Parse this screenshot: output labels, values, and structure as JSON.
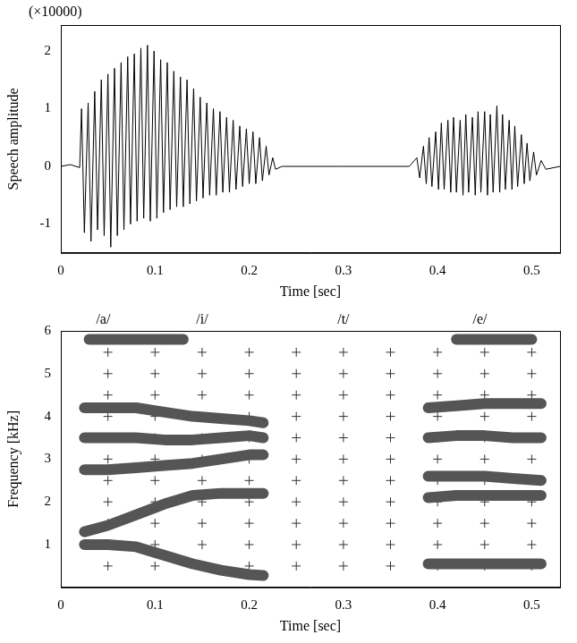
{
  "chart_data": [
    {
      "type": "line",
      "annotations": [
        {
          "text": "(×10000)"
        }
      ],
      "xlabel": "Time [sec]",
      "ylabel": "Speech amplitude",
      "xlim": [
        0,
        0.53
      ],
      "xticks": [
        0,
        0.1,
        0.2,
        0.3,
        0.4,
        0.5
      ],
      "ylim": [
        -1.5,
        2.45
      ],
      "yticks": [
        -1,
        0,
        1,
        2
      ],
      "grid": false,
      "series": [
        {
          "color": "#000000",
          "line_style": "solid",
          "x": [
            0,
            0.01,
            0.02,
            0.022,
            0.025,
            0.029,
            0.032,
            0.036,
            0.039,
            0.043,
            0.046,
            0.05,
            0.053,
            0.057,
            0.06,
            0.064,
            0.067,
            0.071,
            0.074,
            0.078,
            0.081,
            0.085,
            0.088,
            0.092,
            0.095,
            0.099,
            0.102,
            0.106,
            0.109,
            0.113,
            0.116,
            0.12,
            0.123,
            0.127,
            0.13,
            0.134,
            0.137,
            0.141,
            0.144,
            0.148,
            0.151,
            0.155,
            0.158,
            0.162,
            0.165,
            0.169,
            0.172,
            0.176,
            0.179,
            0.183,
            0.186,
            0.19,
            0.193,
            0.197,
            0.2,
            0.204,
            0.207,
            0.211,
            0.214,
            0.218,
            0.221,
            0.225,
            0.228,
            0.235,
            0.3,
            0.37,
            0.378,
            0.381,
            0.385,
            0.388,
            0.391,
            0.394,
            0.398,
            0.401,
            0.404,
            0.407,
            0.411,
            0.414,
            0.417,
            0.42,
            0.424,
            0.427,
            0.43,
            0.433,
            0.437,
            0.44,
            0.443,
            0.446,
            0.45,
            0.453,
            0.456,
            0.459,
            0.463,
            0.466,
            0.469,
            0.472,
            0.476,
            0.479,
            0.482,
            0.485,
            0.489,
            0.492,
            0.495,
            0.498,
            0.502,
            0.505,
            0.51,
            0.515,
            0.53
          ],
          "values": [
            0,
            0.03,
            -0.02,
            1.0,
            -1.15,
            1.1,
            -1.3,
            1.3,
            -1.1,
            1.5,
            -1.2,
            1.6,
            -1.4,
            1.7,
            -1.2,
            1.8,
            -1.1,
            1.9,
            -1.0,
            1.95,
            -0.95,
            2.05,
            -0.9,
            2.1,
            -0.95,
            2.0,
            -0.9,
            1.85,
            -0.8,
            1.8,
            -0.75,
            1.65,
            -0.7,
            1.55,
            -0.7,
            1.5,
            -0.65,
            1.35,
            -0.6,
            1.2,
            -0.55,
            1.1,
            -0.5,
            1.0,
            -0.5,
            0.95,
            -0.45,
            0.85,
            -0.45,
            0.8,
            -0.4,
            0.7,
            -0.35,
            0.65,
            -0.3,
            0.6,
            -0.3,
            0.5,
            -0.25,
            0.35,
            -0.15,
            0.15,
            -0.05,
            0,
            0,
            0,
            0.15,
            -0.2,
            0.35,
            -0.3,
            0.5,
            -0.35,
            0.6,
            -0.4,
            0.75,
            -0.4,
            0.8,
            -0.45,
            0.85,
            -0.45,
            0.8,
            -0.5,
            0.9,
            -0.45,
            0.85,
            -0.5,
            0.95,
            -0.45,
            0.95,
            -0.5,
            0.9,
            -0.45,
            1.05,
            -0.45,
            0.9,
            -0.4,
            0.8,
            -0.4,
            0.7,
            -0.35,
            0.55,
            -0.3,
            0.4,
            -0.25,
            0.25,
            -0.15,
            0.1,
            -0.05,
            0
          ]
        }
      ]
    },
    {
      "type": "scatter",
      "annotations": [
        {
          "text": "/a/",
          "x": 0.045
        },
        {
          "text": "/i/",
          "x": 0.15
        },
        {
          "text": "/t/",
          "x": 0.3
        },
        {
          "text": "/e/",
          "x": 0.445
        }
      ],
      "xlabel": "Time [sec]",
      "ylabel": "Frequency [kHz]",
      "xlim": [
        0,
        0.53
      ],
      "xticks": [
        0,
        0.1,
        0.2,
        0.3,
        0.4,
        0.5
      ],
      "ylim": [
        0,
        6
      ],
      "yticks": [
        1,
        2,
        3,
        4,
        5,
        6
      ],
      "grid": false,
      "series": [
        {
          "type": "line",
          "color": "#555555",
          "x": [
            0.025,
            0.05,
            0.08,
            0.11,
            0.14,
            0.17,
            0.2,
            0.215
          ],
          "values": [
            1.0,
            1.0,
            0.95,
            0.75,
            0.55,
            0.4,
            0.3,
            0.28
          ]
        },
        {
          "type": "line",
          "color": "#555555",
          "x": [
            0.025,
            0.05,
            0.08,
            0.11,
            0.14,
            0.17,
            0.2,
            0.215
          ],
          "values": [
            1.3,
            1.45,
            1.7,
            1.95,
            2.15,
            2.2,
            2.2,
            2.2
          ]
        },
        {
          "type": "line",
          "color": "#555555",
          "x": [
            0.025,
            0.05,
            0.08,
            0.11,
            0.14,
            0.17,
            0.2,
            0.215
          ],
          "values": [
            2.75,
            2.75,
            2.8,
            2.85,
            2.9,
            3.0,
            3.1,
            3.1
          ]
        },
        {
          "type": "line",
          "color": "#555555",
          "x": [
            0.025,
            0.05,
            0.08,
            0.11,
            0.14,
            0.17,
            0.2,
            0.215
          ],
          "values": [
            3.5,
            3.5,
            3.5,
            3.45,
            3.45,
            3.5,
            3.55,
            3.5
          ]
        },
        {
          "type": "line",
          "color": "#555555",
          "x": [
            0.025,
            0.05,
            0.08,
            0.11,
            0.14,
            0.17,
            0.2,
            0.215
          ],
          "values": [
            4.2,
            4.2,
            4.2,
            4.1,
            4.0,
            3.95,
            3.9,
            3.85
          ]
        },
        {
          "type": "line",
          "color": "#555555",
          "x": [
            0.03,
            0.13
          ],
          "values": [
            5.8,
            5.8
          ]
        },
        {
          "type": "line",
          "color": "#555555",
          "x": [
            0.39,
            0.42,
            0.45,
            0.48,
            0.51
          ],
          "values": [
            0.55,
            0.55,
            0.55,
            0.55,
            0.55
          ]
        },
        {
          "type": "line",
          "color": "#555555",
          "x": [
            0.39,
            0.42,
            0.45,
            0.48,
            0.51
          ],
          "values": [
            2.1,
            2.15,
            2.15,
            2.15,
            2.15
          ]
        },
        {
          "type": "line",
          "color": "#555555",
          "x": [
            0.39,
            0.42,
            0.45,
            0.48,
            0.51
          ],
          "values": [
            2.6,
            2.6,
            2.6,
            2.55,
            2.5
          ]
        },
        {
          "type": "line",
          "color": "#555555",
          "x": [
            0.39,
            0.42,
            0.45,
            0.48,
            0.51
          ],
          "values": [
            3.5,
            3.55,
            3.55,
            3.5,
            3.5
          ]
        },
        {
          "type": "line",
          "color": "#555555",
          "x": [
            0.39,
            0.42,
            0.45,
            0.48,
            0.51
          ],
          "values": [
            4.2,
            4.25,
            4.3,
            4.3,
            4.3
          ]
        },
        {
          "type": "line",
          "color": "#555555",
          "x": [
            0.42,
            0.5
          ],
          "values": [
            5.8,
            5.8
          ]
        },
        {
          "type": "scatter",
          "marker": "cross",
          "color": "#333333",
          "x": [
            0.05,
            0.05,
            0.05,
            0.05,
            0.05,
            0.05,
            0.05,
            0.05,
            0.05,
            0.05,
            0.05,
            0.1,
            0.1,
            0.1,
            0.1,
            0.1,
            0.1,
            0.1,
            0.1,
            0.1,
            0.1,
            0.1,
            0.15,
            0.15,
            0.15,
            0.15,
            0.15,
            0.15,
            0.15,
            0.15,
            0.15,
            0.15,
            0.15,
            0.2,
            0.2,
            0.2,
            0.2,
            0.2,
            0.2,
            0.2,
            0.2,
            0.2,
            0.2,
            0.2,
            0.25,
            0.25,
            0.25,
            0.25,
            0.25,
            0.25,
            0.25,
            0.25,
            0.25,
            0.25,
            0.25,
            0.3,
            0.3,
            0.3,
            0.3,
            0.3,
            0.3,
            0.3,
            0.3,
            0.3,
            0.3,
            0.3,
            0.35,
            0.35,
            0.35,
            0.35,
            0.35,
            0.35,
            0.35,
            0.35,
            0.35,
            0.35,
            0.35,
            0.4,
            0.4,
            0.4,
            0.4,
            0.4,
            0.4,
            0.4,
            0.4,
            0.4,
            0.4,
            0.4,
            0.45,
            0.45,
            0.45,
            0.45,
            0.45,
            0.45,
            0.45,
            0.45,
            0.45,
            0.45,
            0.45,
            0.5,
            0.5,
            0.5,
            0.5,
            0.5,
            0.5,
            0.5,
            0.5,
            0.5,
            0.5,
            0.5
          ],
          "values": [
            0.5,
            1,
            1.5,
            2,
            2.5,
            3,
            3.5,
            4,
            4.5,
            5,
            5.5,
            0.5,
            1,
            1.5,
            2,
            2.5,
            3,
            3.5,
            4,
            4.5,
            5,
            5.5,
            0.5,
            1,
            1.5,
            2,
            2.5,
            3,
            3.5,
            4,
            4.5,
            5,
            5.5,
            0.5,
            1,
            1.5,
            2,
            2.5,
            3,
            3.5,
            4,
            4.5,
            5,
            5.5,
            0.5,
            1,
            1.5,
            2,
            2.5,
            3,
            3.5,
            4,
            4.5,
            5,
            5.5,
            0.5,
            1,
            1.5,
            2,
            2.5,
            3,
            3.5,
            4,
            4.5,
            5,
            5.5,
            0.5,
            1,
            1.5,
            2,
            2.5,
            3,
            3.5,
            4,
            4.5,
            5,
            5.5,
            0.5,
            1,
            1.5,
            2,
            2.5,
            3,
            3.5,
            4,
            4.5,
            5,
            5.5,
            0.5,
            1,
            1.5,
            2,
            2.5,
            3,
            3.5,
            4,
            4.5,
            5,
            5.5,
            0.5,
            1,
            1.5,
            2,
            2.5,
            3,
            3.5,
            4,
            4.5,
            5,
            5.5
          ]
        }
      ]
    }
  ]
}
